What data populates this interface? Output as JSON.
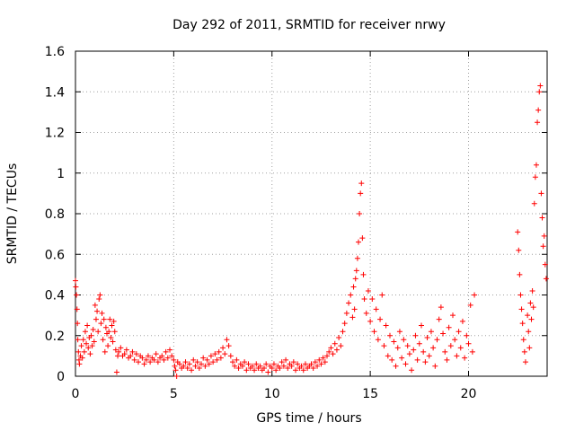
{
  "chart_data": {
    "type": "scatter",
    "title": "Day 292 of 2011, SRMTID for receiver nrwy",
    "xlabel": "GPS time / hours",
    "ylabel": "SRMTID / TECUs",
    "xlim": [
      0,
      24
    ],
    "ylim": [
      0,
      1.6
    ],
    "xticks": [
      0,
      5,
      10,
      15,
      20
    ],
    "xtick_labels": [
      "0",
      "5",
      "10",
      "15",
      "20"
    ],
    "yticks": [
      0,
      0.2,
      0.4,
      0.6,
      0.8,
      1,
      1.2,
      1.4,
      1.6
    ],
    "ytick_labels": [
      "0",
      "0.2",
      "0.4",
      "0.6",
      "0.8",
      "1",
      "1.2",
      "1.4",
      "1.6"
    ],
    "grid": true,
    "marker": "+",
    "series": [
      {
        "name": "SRMTID",
        "color": "#ff0000",
        "points": [
          [
            0.0,
            0.47
          ],
          [
            0.02,
            0.44
          ],
          [
            0.05,
            0.4
          ],
          [
            0.08,
            0.33
          ],
          [
            0.1,
            0.26
          ],
          [
            0.12,
            0.18
          ],
          [
            0.15,
            0.12
          ],
          [
            0.18,
            0.08
          ],
          [
            0.2,
            0.06
          ],
          [
            0.25,
            0.1
          ],
          [
            0.3,
            0.15
          ],
          [
            0.35,
            0.09
          ],
          [
            0.4,
            0.18
          ],
          [
            0.45,
            0.12
          ],
          [
            0.5,
            0.22
          ],
          [
            0.55,
            0.16
          ],
          [
            0.6,
            0.25
          ],
          [
            0.65,
            0.14
          ],
          [
            0.7,
            0.19
          ],
          [
            0.75,
            0.11
          ],
          [
            0.8,
            0.2
          ],
          [
            0.85,
            0.15
          ],
          [
            0.9,
            0.23
          ],
          [
            0.95,
            0.17
          ],
          [
            1.0,
            0.35
          ],
          [
            1.05,
            0.28
          ],
          [
            1.1,
            0.32
          ],
          [
            1.15,
            0.22
          ],
          [
            1.2,
            0.38
          ],
          [
            1.25,
            0.4
          ],
          [
            1.3,
            0.26
          ],
          [
            1.35,
            0.31
          ],
          [
            1.4,
            0.18
          ],
          [
            1.45,
            0.28
          ],
          [
            1.5,
            0.12
          ],
          [
            1.55,
            0.24
          ],
          [
            1.6,
            0.21
          ],
          [
            1.65,
            0.15
          ],
          [
            1.7,
            0.22
          ],
          [
            1.75,
            0.28
          ],
          [
            1.8,
            0.19
          ],
          [
            1.85,
            0.25
          ],
          [
            1.9,
            0.17
          ],
          [
            1.95,
            0.27
          ],
          [
            2.0,
            0.22
          ],
          [
            2.05,
            0.13
          ],
          [
            2.1,
            0.02
          ],
          [
            2.15,
            0.1
          ],
          [
            2.2,
            0.12
          ],
          [
            2.3,
            0.14
          ],
          [
            2.4,
            0.1
          ],
          [
            2.5,
            0.11
          ],
          [
            2.6,
            0.13
          ],
          [
            2.7,
            0.09
          ],
          [
            2.8,
            0.1
          ],
          [
            2.9,
            0.12
          ],
          [
            3.0,
            0.08
          ],
          [
            3.1,
            0.11
          ],
          [
            3.2,
            0.07
          ],
          [
            3.3,
            0.1
          ],
          [
            3.4,
            0.09
          ],
          [
            3.5,
            0.06
          ],
          [
            3.6,
            0.08
          ],
          [
            3.7,
            0.1
          ],
          [
            3.8,
            0.07
          ],
          [
            3.9,
            0.09
          ],
          [
            4.0,
            0.08
          ],
          [
            4.1,
            0.11
          ],
          [
            4.2,
            0.07
          ],
          [
            4.3,
            0.09
          ],
          [
            4.4,
            0.1
          ],
          [
            4.5,
            0.08
          ],
          [
            4.6,
            0.12
          ],
          [
            4.7,
            0.09
          ],
          [
            4.8,
            0.13
          ],
          [
            4.9,
            0.1
          ],
          [
            5.0,
            0.08
          ],
          [
            5.05,
            0.05
          ],
          [
            5.1,
            0.03
          ],
          [
            5.15,
            0.0
          ],
          [
            5.2,
            0.07
          ],
          [
            5.3,
            0.06
          ],
          [
            5.4,
            0.04
          ],
          [
            5.5,
            0.05
          ],
          [
            5.6,
            0.07
          ],
          [
            5.7,
            0.04
          ],
          [
            5.8,
            0.06
          ],
          [
            5.9,
            0.03
          ],
          [
            6.0,
            0.08
          ],
          [
            6.1,
            0.05
          ],
          [
            6.2,
            0.07
          ],
          [
            6.3,
            0.04
          ],
          [
            6.4,
            0.06
          ],
          [
            6.5,
            0.09
          ],
          [
            6.6,
            0.05
          ],
          [
            6.7,
            0.08
          ],
          [
            6.8,
            0.06
          ],
          [
            6.9,
            0.1
          ],
          [
            7.0,
            0.07
          ],
          [
            7.1,
            0.11
          ],
          [
            7.2,
            0.08
          ],
          [
            7.3,
            0.12
          ],
          [
            7.4,
            0.09
          ],
          [
            7.5,
            0.14
          ],
          [
            7.6,
            0.11
          ],
          [
            7.7,
            0.18
          ],
          [
            7.8,
            0.15
          ],
          [
            7.9,
            0.1
          ],
          [
            8.0,
            0.07
          ],
          [
            8.1,
            0.05
          ],
          [
            8.2,
            0.08
          ],
          [
            8.3,
            0.04
          ],
          [
            8.4,
            0.06
          ],
          [
            8.5,
            0.05
          ],
          [
            8.6,
            0.07
          ],
          [
            8.7,
            0.03
          ],
          [
            8.8,
            0.06
          ],
          [
            8.9,
            0.04
          ],
          [
            9.0,
            0.05
          ],
          [
            9.1,
            0.03
          ],
          [
            9.2,
            0.06
          ],
          [
            9.3,
            0.04
          ],
          [
            9.4,
            0.05
          ],
          [
            9.5,
            0.03
          ],
          [
            9.6,
            0.04
          ],
          [
            9.7,
            0.06
          ],
          [
            9.8,
            0.02
          ],
          [
            9.9,
            0.05
          ],
          [
            10.0,
            0.04
          ],
          [
            10.1,
            0.06
          ],
          [
            10.2,
            0.03
          ],
          [
            10.3,
            0.05
          ],
          [
            10.4,
            0.04
          ],
          [
            10.5,
            0.07
          ],
          [
            10.6,
            0.05
          ],
          [
            10.7,
            0.08
          ],
          [
            10.8,
            0.04
          ],
          [
            10.9,
            0.06
          ],
          [
            11.0,
            0.05
          ],
          [
            11.1,
            0.07
          ],
          [
            11.2,
            0.03
          ],
          [
            11.3,
            0.06
          ],
          [
            11.4,
            0.04
          ],
          [
            11.5,
            0.05
          ],
          [
            11.6,
            0.03
          ],
          [
            11.7,
            0.06
          ],
          [
            11.8,
            0.04
          ],
          [
            11.9,
            0.05
          ],
          [
            12.0,
            0.06
          ],
          [
            12.1,
            0.04
          ],
          [
            12.2,
            0.07
          ],
          [
            12.3,
            0.05
          ],
          [
            12.4,
            0.08
          ],
          [
            12.5,
            0.06
          ],
          [
            12.6,
            0.09
          ],
          [
            12.7,
            0.07
          ],
          [
            12.8,
            0.1
          ],
          [
            12.9,
            0.12
          ],
          [
            13.0,
            0.14
          ],
          [
            13.1,
            0.11
          ],
          [
            13.2,
            0.16
          ],
          [
            13.3,
            0.13
          ],
          [
            13.4,
            0.19
          ],
          [
            13.5,
            0.15
          ],
          [
            13.6,
            0.22
          ],
          [
            13.7,
            0.26
          ],
          [
            13.8,
            0.31
          ],
          [
            13.9,
            0.36
          ],
          [
            14.0,
            0.4
          ],
          [
            14.1,
            0.29
          ],
          [
            14.15,
            0.44
          ],
          [
            14.2,
            0.33
          ],
          [
            14.25,
            0.48
          ],
          [
            14.3,
            0.52
          ],
          [
            14.35,
            0.58
          ],
          [
            14.4,
            0.66
          ],
          [
            14.45,
            0.8
          ],
          [
            14.5,
            0.9
          ],
          [
            14.55,
            0.95
          ],
          [
            14.6,
            0.68
          ],
          [
            14.65,
            0.5
          ],
          [
            14.7,
            0.38
          ],
          [
            14.8,
            0.31
          ],
          [
            14.9,
            0.42
          ],
          [
            15.0,
            0.27
          ],
          [
            15.1,
            0.38
          ],
          [
            15.2,
            0.22
          ],
          [
            15.3,
            0.33
          ],
          [
            15.4,
            0.18
          ],
          [
            15.5,
            0.28
          ],
          [
            15.6,
            0.4
          ],
          [
            15.7,
            0.15
          ],
          [
            15.8,
            0.25
          ],
          [
            15.9,
            0.1
          ],
          [
            16.0,
            0.2
          ],
          [
            16.1,
            0.08
          ],
          [
            16.2,
            0.17
          ],
          [
            16.3,
            0.05
          ],
          [
            16.4,
            0.14
          ],
          [
            16.5,
            0.22
          ],
          [
            16.6,
            0.09
          ],
          [
            16.7,
            0.18
          ],
          [
            16.8,
            0.06
          ],
          [
            16.9,
            0.15
          ],
          [
            17.0,
            0.11
          ],
          [
            17.1,
            0.03
          ],
          [
            17.2,
            0.13
          ],
          [
            17.3,
            0.2
          ],
          [
            17.4,
            0.08
          ],
          [
            17.5,
            0.16
          ],
          [
            17.6,
            0.25
          ],
          [
            17.7,
            0.12
          ],
          [
            17.8,
            0.07
          ],
          [
            17.9,
            0.19
          ],
          [
            18.0,
            0.1
          ],
          [
            18.1,
            0.22
          ],
          [
            18.2,
            0.14
          ],
          [
            18.3,
            0.05
          ],
          [
            18.4,
            0.18
          ],
          [
            18.5,
            0.28
          ],
          [
            18.6,
            0.34
          ],
          [
            18.7,
            0.21
          ],
          [
            18.8,
            0.12
          ],
          [
            18.9,
            0.08
          ],
          [
            19.0,
            0.24
          ],
          [
            19.1,
            0.15
          ],
          [
            19.2,
            0.3
          ],
          [
            19.3,
            0.18
          ],
          [
            19.4,
            0.1
          ],
          [
            19.5,
            0.22
          ],
          [
            19.6,
            0.14
          ],
          [
            19.7,
            0.27
          ],
          [
            19.8,
            0.09
          ],
          [
            19.9,
            0.2
          ],
          [
            20.0,
            0.16
          ],
          [
            20.1,
            0.35
          ],
          [
            20.2,
            0.12
          ],
          [
            20.3,
            0.4
          ],
          [
            22.5,
            0.71
          ],
          [
            22.55,
            0.62
          ],
          [
            22.6,
            0.5
          ],
          [
            22.65,
            0.4
          ],
          [
            22.7,
            0.33
          ],
          [
            22.75,
            0.26
          ],
          [
            22.8,
            0.18
          ],
          [
            22.85,
            0.12
          ],
          [
            22.9,
            0.07
          ],
          [
            23.0,
            0.3
          ],
          [
            23.05,
            0.22
          ],
          [
            23.1,
            0.14
          ],
          [
            23.15,
            0.36
          ],
          [
            23.2,
            0.28
          ],
          [
            23.25,
            0.42
          ],
          [
            23.3,
            0.34
          ],
          [
            23.35,
            0.85
          ],
          [
            23.4,
            0.98
          ],
          [
            23.45,
            1.04
          ],
          [
            23.5,
            1.25
          ],
          [
            23.55,
            1.31
          ],
          [
            23.6,
            1.4
          ],
          [
            23.65,
            1.43
          ],
          [
            23.7,
            0.9
          ],
          [
            23.75,
            0.78
          ],
          [
            23.8,
            0.64
          ],
          [
            23.85,
            0.69
          ],
          [
            23.9,
            0.55
          ],
          [
            23.95,
            0.48
          ]
        ]
      }
    ]
  }
}
